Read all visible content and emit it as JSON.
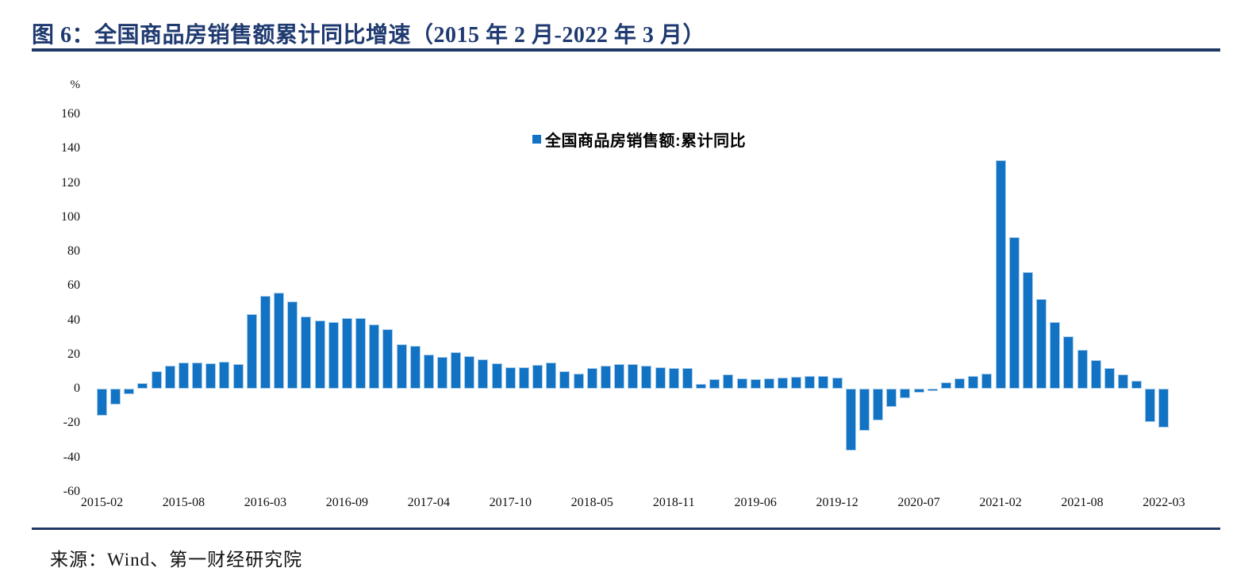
{
  "header": {
    "title": "图 6：全国商品房销售额累计同比增速（2015 年 2 月-2022 年 3 月）"
  },
  "chart": {
    "y_unit": "%",
    "legend_label": "全国商品房销售额:累计同比"
  },
  "footer": {
    "source": "来源：Wind、第一财经研究院"
  },
  "chart_data": {
    "type": "bar",
    "title": "全国商品房销售额累计同比增速（2015年2月-2022年3月）",
    "legend": [
      "全国商品房销售额:累计同比"
    ],
    "legend_position": "top-center",
    "xlabel": "",
    "ylabel": "%",
    "ylim": [
      -60,
      160
    ],
    "y_ticks": [
      160,
      140,
      120,
      100,
      80,
      60,
      40,
      20,
      0,
      -20,
      -40,
      -60
    ],
    "grid": false,
    "bar_color": "#1273c4",
    "bar_edge_color": "#a9cce9",
    "x": [
      "2015-02",
      "2015-03",
      "2015-04",
      "2015-05",
      "2015-06",
      "2015-07",
      "2015-08",
      "2015-09",
      "2015-10",
      "2015-11",
      "2015-12",
      "2016-02",
      "2016-03",
      "2016-04",
      "2016-05",
      "2016-06",
      "2016-07",
      "2016-08",
      "2016-09",
      "2016-10",
      "2016-11",
      "2016-12",
      "2017-02",
      "2017-03",
      "2017-04",
      "2017-05",
      "2017-06",
      "2017-07",
      "2017-08",
      "2017-09",
      "2017-10",
      "2017-11",
      "2017-12",
      "2018-02",
      "2018-03",
      "2018-04",
      "2018-05",
      "2018-06",
      "2018-07",
      "2018-08",
      "2018-09",
      "2018-10",
      "2018-11",
      "2018-12",
      "2019-02",
      "2019-03",
      "2019-04",
      "2019-05",
      "2019-06",
      "2019-07",
      "2019-08",
      "2019-09",
      "2019-10",
      "2019-11",
      "2019-12",
      "2020-02",
      "2020-03",
      "2020-04",
      "2020-05",
      "2020-06",
      "2020-07",
      "2020-08",
      "2020-09",
      "2020-10",
      "2020-11",
      "2020-12",
      "2021-02",
      "2021-03",
      "2021-04",
      "2021-05",
      "2021-06",
      "2021-07",
      "2021-08",
      "2021-09",
      "2021-10",
      "2021-11",
      "2021-12",
      "2022-02",
      "2022-03"
    ],
    "values": [
      -15.8,
      -9.3,
      -3.1,
      3.1,
      10.0,
      13.4,
      15.3,
      15.3,
      14.9,
      15.6,
      14.4,
      43.6,
      54.1,
      55.9,
      50.7,
      42.1,
      39.8,
      38.7,
      41.3,
      41.2,
      37.5,
      34.8,
      26.0,
      25.1,
      20.1,
      18.6,
      21.5,
      18.9,
      17.2,
      14.6,
      12.6,
      12.7,
      13.7,
      15.3,
      10.4,
      9.0,
      11.8,
      13.2,
      14.4,
      14.5,
      13.3,
      12.5,
      12.1,
      12.2,
      2.8,
      5.6,
      8.1,
      6.1,
      5.6,
      6.2,
      6.7,
      7.1,
      7.3,
      7.3,
      6.5,
      -35.9,
      -24.7,
      -18.6,
      -10.6,
      -5.4,
      -2.1,
      -1.6,
      3.7,
      5.8,
      7.2,
      8.7,
      133.4,
      88.5,
      68.2,
      52.4,
      38.9,
      30.7,
      22.8,
      16.6,
      11.8,
      8.5,
      4.8,
      -19.3,
      -22.7
    ],
    "x_tick_indices": [
      0,
      6,
      12,
      18,
      24,
      30,
      36,
      42,
      48,
      54,
      60,
      66,
      72,
      78
    ],
    "x_tick_labels": [
      "2015-02",
      "2015-08",
      "2016-03",
      "2016-09",
      "2017-04",
      "2017-10",
      "2018-05",
      "2018-11",
      "2019-06",
      "2019-12",
      "2020-07",
      "2021-02",
      "2021-08",
      "2022-03"
    ]
  }
}
